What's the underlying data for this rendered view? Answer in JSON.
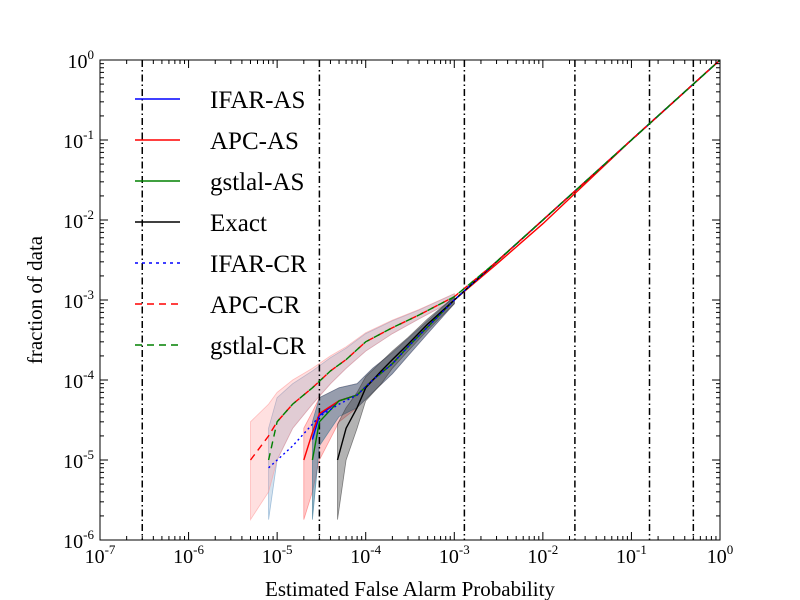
{
  "chart_data": {
    "type": "line",
    "xlabel": "Estimated False Alarm Probability",
    "ylabel": "fraction of data",
    "xscale": "log",
    "yscale": "log",
    "xlim": [
      1e-07,
      1
    ],
    "ylim": [
      1e-06,
      1
    ],
    "x_tick_labels": [
      {
        "base": "10",
        "exp": "-7"
      },
      {
        "base": "10",
        "exp": "-6"
      },
      {
        "base": "10",
        "exp": "-5"
      },
      {
        "base": "10",
        "exp": "-4"
      },
      {
        "base": "10",
        "exp": "-3"
      },
      {
        "base": "10",
        "exp": "-2"
      },
      {
        "base": "10",
        "exp": "-1"
      },
      {
        "base": "10",
        "exp": "0"
      }
    ],
    "y_tick_labels": [
      {
        "base": "10",
        "exp": "-6"
      },
      {
        "base": "10",
        "exp": "-5"
      },
      {
        "base": "10",
        "exp": "-4"
      },
      {
        "base": "10",
        "exp": "-3"
      },
      {
        "base": "10",
        "exp": "-2"
      },
      {
        "base": "10",
        "exp": "-1"
      },
      {
        "base": "10",
        "exp": "0"
      }
    ],
    "vertical_lines_x": [
      3e-07,
      3e-05,
      0.0013,
      0.023,
      0.16,
      0.5
    ],
    "legend_location": "upper-left",
    "series": [
      {
        "name": "IFAR-AS",
        "color": "#0000ff",
        "style": "solid",
        "x": [
          2.5e-05,
          3e-05,
          5e-05,
          8e-05,
          0.00012,
          0.0002,
          0.0003,
          0.0005,
          0.001,
          0.003,
          0.01,
          0.1,
          1
        ],
        "y": [
          1.8e-05,
          3.6e-05,
          5.5e-05,
          6.5e-05,
          0.0001,
          0.00016,
          0.00026,
          0.00046,
          0.001,
          0.003,
          0.01,
          0.1,
          1
        ]
      },
      {
        "name": "APC-AS",
        "color": "#ff0000",
        "style": "solid",
        "x": [
          2e-05,
          2.5e-05,
          3e-05,
          5e-05,
          8e-05,
          0.00012,
          0.0002,
          0.0003,
          0.0005,
          0.001,
          0.003,
          0.01,
          0.1,
          1
        ],
        "y": [
          1e-05,
          2.2e-05,
          3.8e-05,
          5.5e-05,
          6.5e-05,
          0.0001,
          0.00016,
          0.00026,
          0.00046,
          0.001,
          0.0028,
          0.009,
          0.1,
          1
        ]
      },
      {
        "name": "gstlal-AS",
        "color": "#008000",
        "style": "solid",
        "x": [
          2.5e-05,
          3e-05,
          5e-05,
          8e-05,
          0.00012,
          0.0002,
          0.0003,
          0.0005,
          0.001,
          0.003,
          0.01,
          0.1,
          1
        ],
        "y": [
          1e-05,
          3e-05,
          5.5e-05,
          6.5e-05,
          0.0001,
          0.00016,
          0.00026,
          0.00046,
          0.001,
          0.003,
          0.01,
          0.1,
          1
        ]
      },
      {
        "name": "Exact",
        "color": "#000000",
        "style": "solid",
        "x": [
          4.8e-05,
          6e-05,
          8e-05,
          0.0001,
          0.00015,
          0.0002,
          0.0003,
          0.0005,
          0.001,
          0.003,
          0.01,
          0.1,
          1
        ],
        "y": [
          1e-05,
          2.5e-05,
          4.5e-05,
          8e-05,
          0.00013,
          0.00018,
          0.00028,
          0.0005,
          0.001,
          0.003,
          0.01,
          0.1,
          1
        ]
      },
      {
        "name": "IFAR-CR",
        "color": "#0000ff",
        "style": "dotted",
        "x": [
          8e-06,
          1.5e-05,
          3e-05,
          5e-05,
          8e-05,
          0.00012,
          0.0002,
          0.0003,
          0.0005,
          0.001,
          0.003,
          0.01,
          0.1,
          1
        ],
        "y": [
          8e-06,
          1.5e-05,
          3.5e-05,
          5e-05,
          6.5e-05,
          0.0001,
          0.00016,
          0.00026,
          0.00046,
          0.001,
          0.003,
          0.01,
          0.1,
          1
        ]
      },
      {
        "name": "APC-CR",
        "color": "#ff0000",
        "style": "dashed",
        "x": [
          5e-06,
          8e-06,
          1e-05,
          1.5e-05,
          2.5e-05,
          4e-05,
          6e-05,
          0.0001,
          0.0002,
          0.0004,
          0.001,
          0.003,
          0.01,
          0.1,
          1
        ],
        "y": [
          1e-05,
          2e-05,
          3e-05,
          5e-05,
          8e-05,
          0.00013,
          0.00018,
          0.0003,
          0.00045,
          0.00065,
          0.0011,
          0.003,
          0.01,
          0.1,
          1
        ]
      },
      {
        "name": "gstlal-CR",
        "color": "#008000",
        "style": "dashed",
        "x": [
          8e-06,
          1e-05,
          1.5e-05,
          2.5e-05,
          4e-05,
          6e-05,
          0.0001,
          0.0002,
          0.0004,
          0.001,
          0.003,
          0.01,
          0.1,
          1
        ],
        "y": [
          1e-05,
          3e-05,
          5e-05,
          8e-05,
          0.00013,
          0.00018,
          0.0003,
          0.00045,
          0.00065,
          0.0011,
          0.003,
          0.01,
          0.1,
          1
        ]
      }
    ],
    "bands": [
      {
        "name": "CR-band",
        "color": "#6f9fc8",
        "opacity": 0.3,
        "x": [
          8e-06,
          1e-05,
          1.5e-05,
          2.5e-05,
          4e-05,
          6e-05,
          0.0001,
          0.0002,
          0.0004,
          0.001
        ],
        "lower": [
          1.8e-06,
          1e-05,
          2.5e-05,
          5e-05,
          9e-05,
          0.00014,
          0.00023,
          0.00038,
          0.00058,
          0.001
        ],
        "upper": [
          2.5e-05,
          6e-05,
          9e-05,
          0.00013,
          0.00019,
          0.00025,
          0.00038,
          0.00055,
          0.00075,
          0.0012
        ]
      },
      {
        "name": "APC-CR-band",
        "color": "#ff9999",
        "opacity": 0.3,
        "x": [
          5e-06,
          8e-06,
          1e-05,
          1.5e-05,
          2.5e-05,
          4e-05,
          6e-05,
          0.0001,
          0.0002,
          0.0004,
          0.001
        ],
        "lower": [
          1.8e-06,
          4e-06,
          1e-05,
          2.5e-05,
          5e-05,
          9e-05,
          0.00014,
          0.00023,
          0.00038,
          0.00058,
          0.001
        ],
        "upper": [
          3e-05,
          5e-05,
          7e-05,
          0.0001,
          0.00014,
          0.0002,
          0.00026,
          0.00039,
          0.00056,
          0.00076,
          0.0012
        ]
      },
      {
        "name": "APC-AS-band",
        "color": "#ff6666",
        "opacity": 0.35,
        "x": [
          2e-05,
          2.5e-05,
          3e-05,
          5e-05,
          8e-05,
          0.00012,
          0.0002,
          0.0003,
          0.0005,
          0.001
        ],
        "lower": [
          1.8e-06,
          4e-06,
          1e-05,
          3e-05,
          4.5e-05,
          7e-05,
          0.00012,
          0.0002,
          0.00038,
          0.0009
        ],
        "upper": [
          2.5e-05,
          4e-05,
          6e-05,
          8e-05,
          9e-05,
          0.00014,
          0.00022,
          0.00033,
          0.00055,
          0.0011
        ]
      },
      {
        "name": "IFAR-AS-band",
        "color": "#2f6f8f",
        "opacity": 0.5,
        "x": [
          2.5e-05,
          3e-05,
          5e-05,
          8e-05,
          0.00012,
          0.0002,
          0.0003,
          0.0005,
          0.001
        ],
        "lower": [
          1.8e-06,
          1.5e-05,
          3.5e-05,
          4.5e-05,
          7e-05,
          0.00012,
          0.0002,
          0.00038,
          0.0009
        ],
        "upper": [
          3e-05,
          6e-05,
          8e-05,
          9e-05,
          0.00014,
          0.00022,
          0.00033,
          0.00055,
          0.0011
        ]
      },
      {
        "name": "Exact-band",
        "color": "#404040",
        "opacity": 0.4,
        "x": [
          4.8e-05,
          6e-05,
          8e-05,
          0.0001,
          0.00015,
          0.0002,
          0.0003,
          0.0005,
          0.001
        ],
        "lower": [
          1.8e-06,
          1e-05,
          2.5e-05,
          5.5e-05,
          9e-05,
          0.00014,
          0.00023,
          0.00042,
          0.0009
        ],
        "upper": [
          2.8e-05,
          4.5e-05,
          7e-05,
          0.00011,
          0.00017,
          0.00023,
          0.00034,
          0.00058,
          0.0011
        ]
      }
    ]
  }
}
